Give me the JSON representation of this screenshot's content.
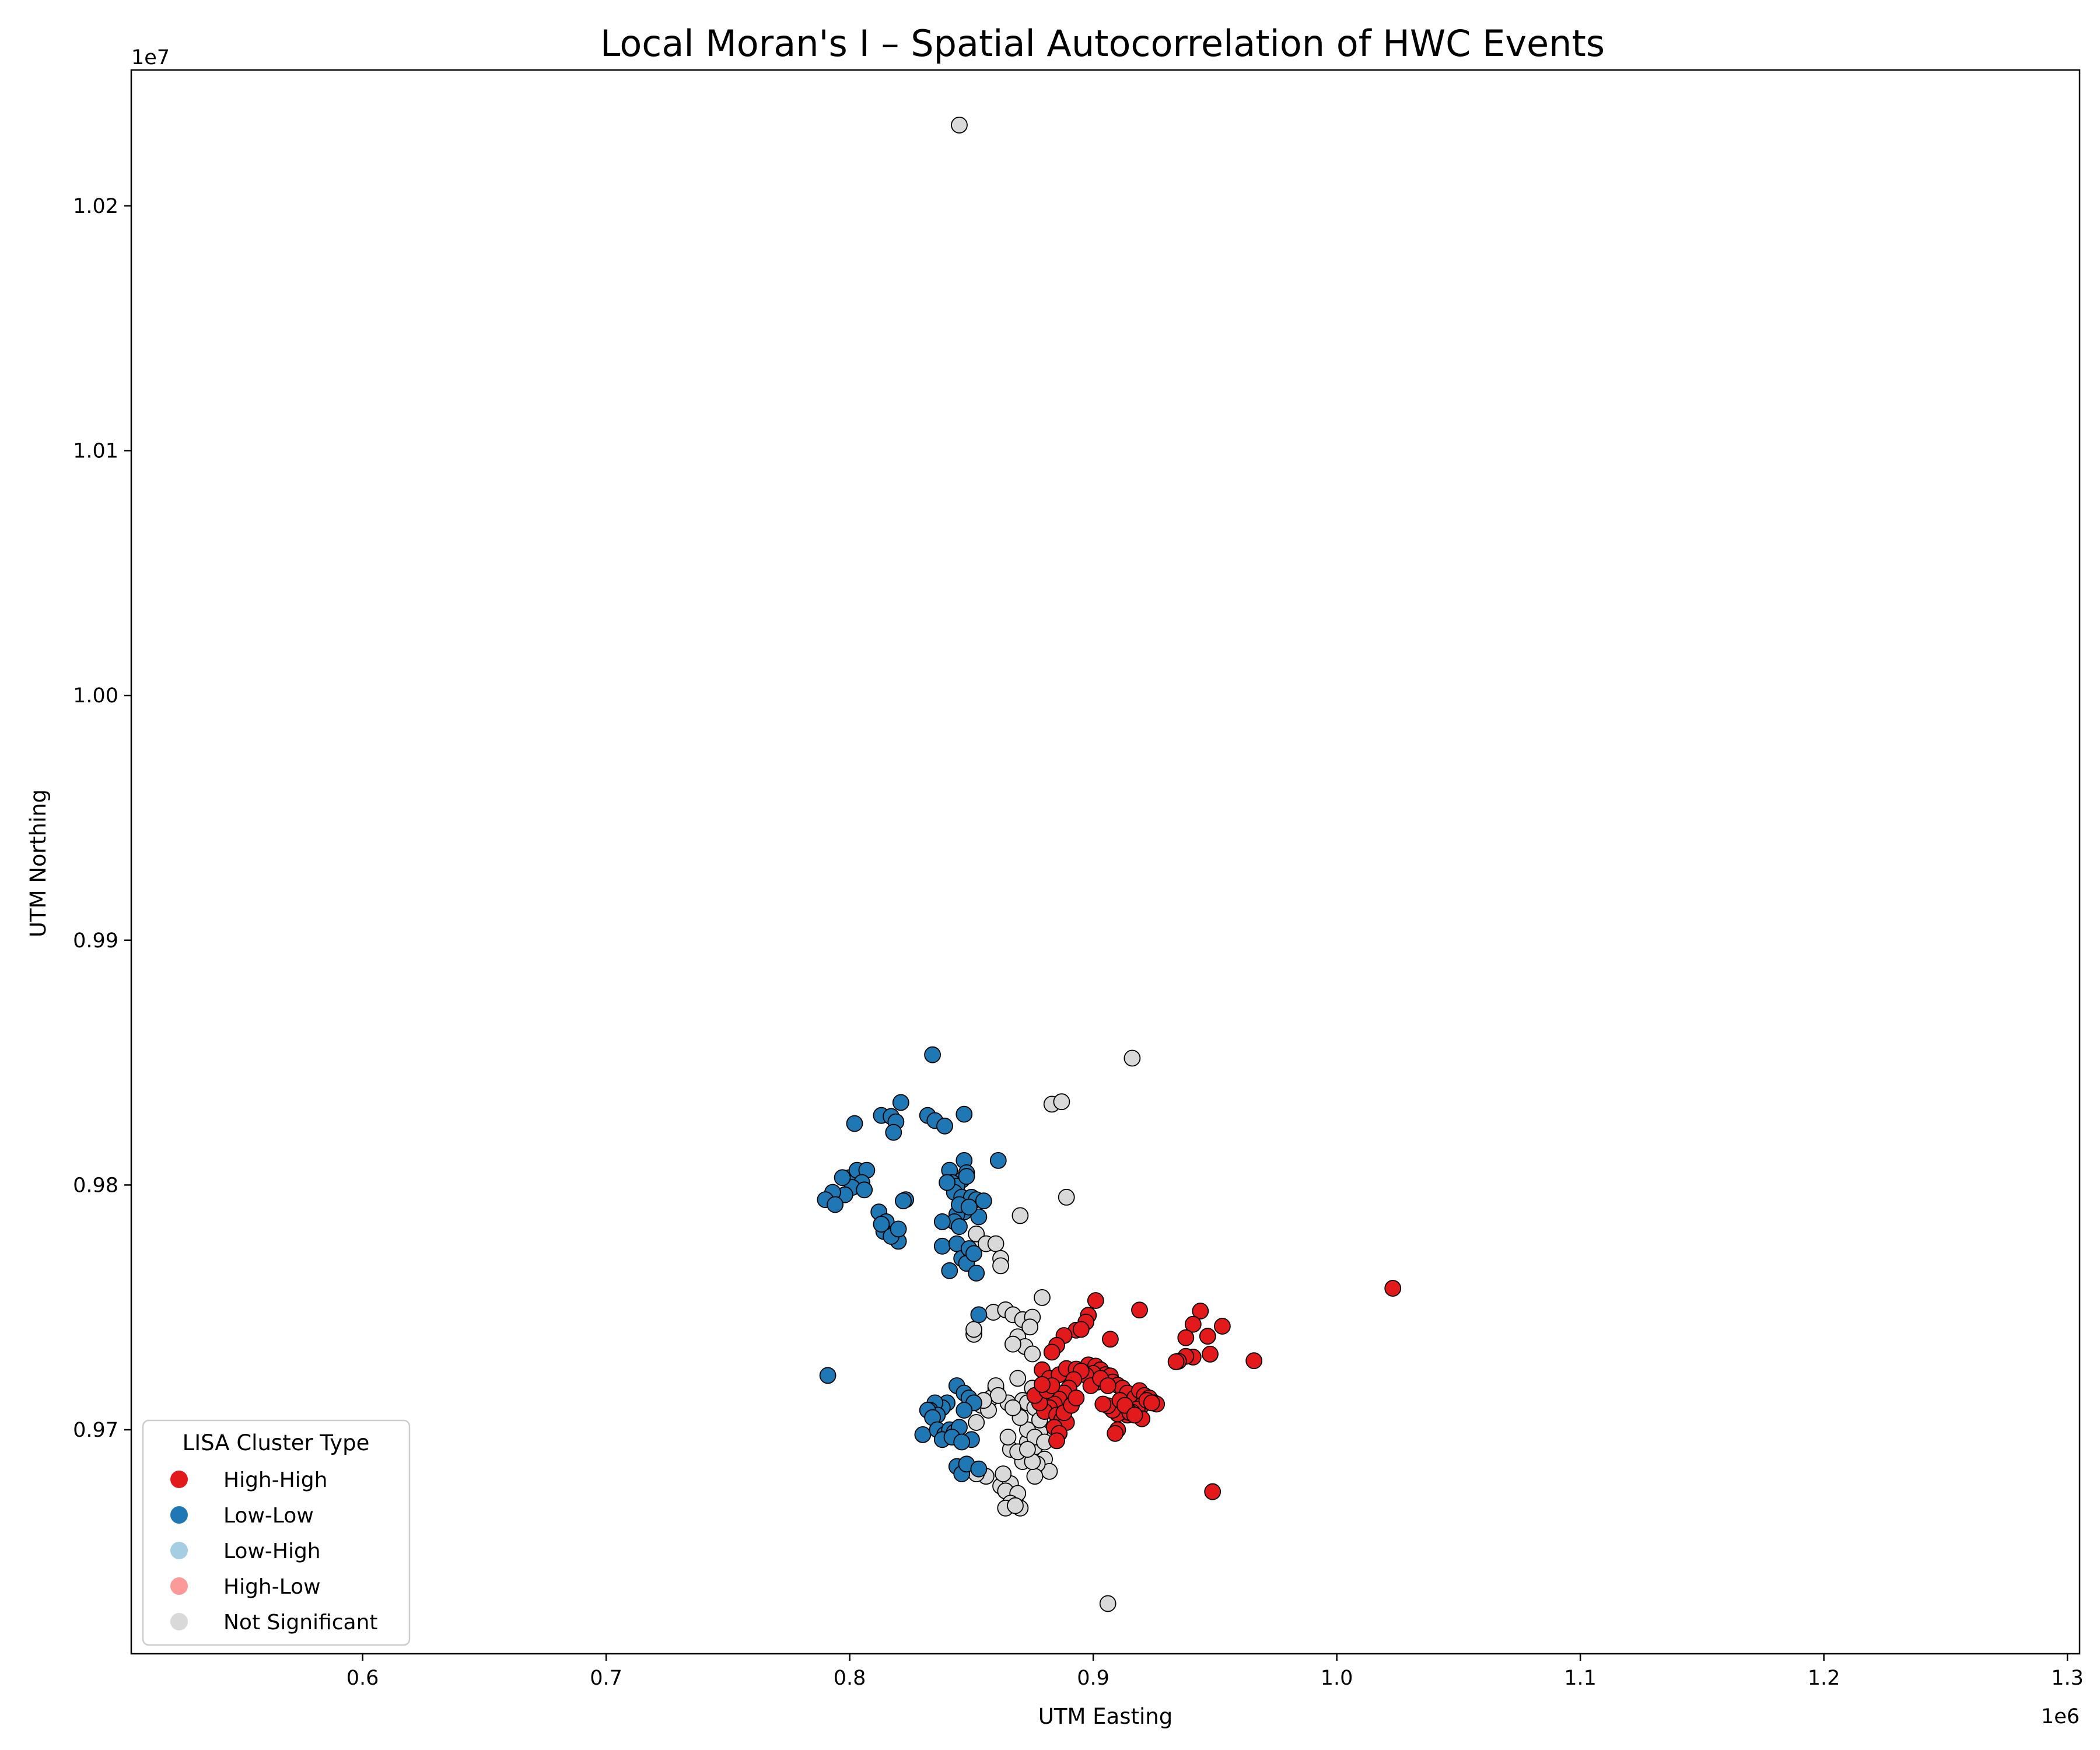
{
  "chart_data": {
    "type": "scatter",
    "title": "Local Moran's I – Spatial Autocorrelation of HWC Events",
    "xlabel": "UTM Easting",
    "ylabel": "UTM Northing",
    "x_offset_label": "1e6",
    "y_offset_label": "1e7",
    "xlim": [
      0.505,
      1.305
    ],
    "ylim": [
      0.96085,
      1.02555
    ],
    "x_ticks": [
      0.6,
      0.7,
      0.8,
      0.9,
      1.0,
      1.1,
      1.2,
      1.3
    ],
    "x_tick_labels": [
      "0.6",
      "0.7",
      "0.8",
      "0.9",
      "1.0",
      "1.1",
      "1.2",
      "1.3"
    ],
    "y_ticks": [
      0.97,
      0.98,
      0.99,
      1.0,
      1.01,
      1.02
    ],
    "y_tick_labels": [
      "0.97",
      "0.98",
      "0.99",
      "1.00",
      "1.01",
      "1.02"
    ],
    "grid": false,
    "legend": {
      "title": "LISA Cluster Type",
      "placement": "lower-left",
      "entries": [
        {
          "label": "High-High",
          "color": "#e31a1c"
        },
        {
          "label": "Low-Low",
          "color": "#1f78b4"
        },
        {
          "label": "Low-High",
          "color": "#a6cee3"
        },
        {
          "label": "High-Low",
          "color": "#fb9a99"
        },
        {
          "label": "Not Significant",
          "color": "#d9d9d9"
        }
      ]
    },
    "series": [
      {
        "name": "High-High",
        "color": "#e31a1c",
        "points": [
          [
            1.023,
            0.97578
          ],
          [
            0.966,
            0.97282
          ],
          [
            0.948,
            0.97309
          ],
          [
            0.947,
            0.97382
          ],
          [
            0.953,
            0.97423
          ],
          [
            0.944,
            0.97485
          ],
          [
            0.941,
            0.97431
          ],
          [
            0.938,
            0.97376
          ],
          [
            0.941,
            0.97297
          ],
          [
            0.938,
            0.973
          ],
          [
            0.935,
            0.9728
          ],
          [
            0.934,
            0.97278
          ],
          [
            0.949,
            0.96747
          ],
          [
            0.919,
            0.97489
          ],
          [
            0.907,
            0.9737
          ],
          [
            0.901,
            0.97528
          ],
          [
            0.898,
            0.97468
          ],
          [
            0.897,
            0.9744
          ],
          [
            0.893,
            0.97407
          ],
          [
            0.895,
            0.9741
          ],
          [
            0.888,
            0.97385
          ],
          [
            0.885,
            0.97345
          ],
          [
            0.883,
            0.97317
          ],
          [
            0.879,
            0.97245
          ],
          [
            0.882,
            0.9721
          ],
          [
            0.886,
            0.97225
          ],
          [
            0.889,
            0.9725
          ],
          [
            0.893,
            0.97248
          ],
          [
            0.896,
            0.9723
          ],
          [
            0.898,
            0.97265
          ],
          [
            0.901,
            0.9726
          ],
          [
            0.903,
            0.97245
          ],
          [
            0.905,
            0.97225
          ],
          [
            0.907,
            0.9722
          ],
          [
            0.908,
            0.97195
          ],
          [
            0.91,
            0.97182
          ],
          [
            0.912,
            0.9717
          ],
          [
            0.914,
            0.9715
          ],
          [
            0.917,
            0.9713
          ],
          [
            0.919,
            0.9716
          ],
          [
            0.921,
            0.9714
          ],
          [
            0.923,
            0.9713
          ],
          [
            0.925,
            0.9711
          ],
          [
            0.926,
            0.97105
          ],
          [
            0.92,
            0.971
          ],
          [
            0.918,
            0.97085
          ],
          [
            0.916,
            0.97072
          ],
          [
            0.914,
            0.9706
          ],
          [
            0.912,
            0.97075
          ],
          [
            0.91,
            0.97065
          ],
          [
            0.908,
            0.9708
          ],
          [
            0.906,
            0.97098
          ],
          [
            0.904,
            0.97105
          ],
          [
            0.91,
            0.97
          ],
          [
            0.909,
            0.96985
          ],
          [
            0.92,
            0.97045
          ],
          [
            0.915,
            0.9707
          ],
          [
            0.902,
            0.97195
          ],
          [
            0.9,
            0.9723
          ],
          [
            0.897,
            0.97223
          ],
          [
            0.895,
            0.9724
          ],
          [
            0.892,
            0.97205
          ],
          [
            0.89,
            0.9717
          ],
          [
            0.888,
            0.9715
          ],
          [
            0.886,
            0.97125
          ],
          [
            0.884,
            0.97105
          ],
          [
            0.882,
            0.9709
          ],
          [
            0.88,
            0.97075
          ],
          [
            0.878,
            0.9711
          ],
          [
            0.876,
            0.9714
          ],
          [
            0.881,
            0.9716
          ],
          [
            0.883,
            0.9718
          ],
          [
            0.885,
            0.9706
          ],
          [
            0.887,
            0.9704
          ],
          [
            0.889,
            0.9703
          ],
          [
            0.884,
            0.9701
          ],
          [
            0.886,
            0.96985
          ],
          [
            0.885,
            0.96955
          ],
          [
            0.888,
            0.9707
          ],
          [
            0.891,
            0.971
          ],
          [
            0.893,
            0.9713
          ],
          [
            0.899,
            0.9718
          ],
          [
            0.903,
            0.9721
          ],
          [
            0.906,
            0.9718
          ],
          [
            0.911,
            0.9712
          ],
          [
            0.913,
            0.971
          ],
          [
            0.922,
            0.9712
          ],
          [
            0.924,
            0.9711
          ],
          [
            0.917,
            0.9706
          ],
          [
            0.879,
            0.97185
          ]
        ]
      },
      {
        "name": "Low-Low",
        "color": "#1f78b4",
        "points": [
          [
            0.834,
            0.98532
          ],
          [
            0.791,
            0.97222
          ],
          [
            0.821,
            0.98337
          ],
          [
            0.813,
            0.98284
          ],
          [
            0.817,
            0.9828
          ],
          [
            0.819,
            0.98258
          ],
          [
            0.818,
            0.98215
          ],
          [
            0.802,
            0.98251
          ],
          [
            0.832,
            0.98284
          ],
          [
            0.835,
            0.98263
          ],
          [
            0.839,
            0.98241
          ],
          [
            0.847,
            0.98289
          ],
          [
            0.861,
            0.981
          ],
          [
            0.847,
            0.981
          ],
          [
            0.848,
            0.9805
          ],
          [
            0.841,
            0.9806
          ],
          [
            0.846,
            0.9802
          ],
          [
            0.842,
            0.9801
          ],
          [
            0.844,
            0.97995
          ],
          [
            0.843,
            0.9797
          ],
          [
            0.846,
            0.9795
          ],
          [
            0.85,
            0.9795
          ],
          [
            0.852,
            0.9794
          ],
          [
            0.855,
            0.97935
          ],
          [
            0.853,
            0.9787
          ],
          [
            0.847,
            0.9789
          ],
          [
            0.844,
            0.9788
          ],
          [
            0.843,
            0.9785
          ],
          [
            0.838,
            0.9785
          ],
          [
            0.845,
            0.9783
          ],
          [
            0.838,
            0.9775
          ],
          [
            0.844,
            0.9776
          ],
          [
            0.846,
            0.977
          ],
          [
            0.848,
            0.9768
          ],
          [
            0.852,
            0.9764
          ],
          [
            0.841,
            0.9765
          ],
          [
            0.8,
            0.9803
          ],
          [
            0.803,
            0.9806
          ],
          [
            0.807,
            0.9806
          ],
          [
            0.805,
            0.9801
          ],
          [
            0.801,
            0.9799
          ],
          [
            0.798,
            0.9796
          ],
          [
            0.793,
            0.9797
          ],
          [
            0.79,
            0.9794
          ],
          [
            0.794,
            0.9792
          ],
          [
            0.797,
            0.9803
          ],
          [
            0.806,
            0.9798
          ],
          [
            0.812,
            0.9789
          ],
          [
            0.815,
            0.9785
          ],
          [
            0.814,
            0.9781
          ],
          [
            0.818,
            0.978
          ],
          [
            0.82,
            0.9777
          ],
          [
            0.813,
            0.9784
          ],
          [
            0.817,
            0.9779
          ],
          [
            0.82,
            0.9782
          ],
          [
            0.823,
            0.9794
          ],
          [
            0.822,
            0.97935
          ],
          [
            0.849,
            0.9774
          ],
          [
            0.851,
            0.9772
          ],
          [
            0.853,
            0.9747
          ],
          [
            0.844,
            0.9718
          ],
          [
            0.847,
            0.9715
          ],
          [
            0.849,
            0.9713
          ],
          [
            0.851,
            0.9711
          ],
          [
            0.84,
            0.9711
          ],
          [
            0.838,
            0.9709
          ],
          [
            0.835,
            0.9711
          ],
          [
            0.833,
            0.9708
          ],
          [
            0.836,
            0.9706
          ],
          [
            0.832,
            0.9708
          ],
          [
            0.834,
            0.9705
          ],
          [
            0.83,
            0.9698
          ],
          [
            0.836,
            0.97
          ],
          [
            0.839,
            0.9698
          ],
          [
            0.841,
            0.97
          ],
          [
            0.843,
            0.9699
          ],
          [
            0.845,
            0.9701
          ],
          [
            0.838,
            0.9696
          ],
          [
            0.842,
            0.9697
          ],
          [
            0.847,
            0.9708
          ],
          [
            0.844,
            0.9685
          ],
          [
            0.846,
            0.9682
          ],
          [
            0.848,
            0.9686
          ],
          [
            0.853,
            0.9684
          ],
          [
            0.85,
            0.9696
          ],
          [
            0.846,
            0.9695
          ],
          [
            0.848,
            0.98035
          ],
          [
            0.84,
            0.9801
          ],
          [
            0.845,
            0.9792
          ],
          [
            0.849,
            0.9791
          ]
        ]
      },
      {
        "name": "Not Significant",
        "color": "#d9d9d9",
        "points": [
          [
            0.845,
            1.0233
          ],
          [
            0.916,
            0.98518
          ],
          [
            0.883,
            0.9833
          ],
          [
            0.887,
            0.9834
          ],
          [
            0.889,
            0.9795
          ],
          [
            0.87,
            0.97875
          ],
          [
            0.852,
            0.978
          ],
          [
            0.856,
            0.9776
          ],
          [
            0.86,
            0.9776
          ],
          [
            0.862,
            0.977
          ],
          [
            0.862,
            0.9767
          ],
          [
            0.879,
            0.9754
          ],
          [
            0.859,
            0.9748
          ],
          [
            0.864,
            0.9749
          ],
          [
            0.867,
            0.9747
          ],
          [
            0.871,
            0.9745
          ],
          [
            0.875,
            0.9746
          ],
          [
            0.874,
            0.9742
          ],
          [
            0.869,
            0.9738
          ],
          [
            0.872,
            0.9734
          ],
          [
            0.875,
            0.9731
          ],
          [
            0.867,
            0.9735
          ],
          [
            0.851,
            0.9739
          ],
          [
            0.851,
            0.9741
          ],
          [
            0.869,
            0.9721
          ],
          [
            0.875,
            0.9717
          ],
          [
            0.871,
            0.9712
          ],
          [
            0.873,
            0.9711
          ],
          [
            0.876,
            0.9709
          ],
          [
            0.865,
            0.9711
          ],
          [
            0.86,
            0.9717
          ],
          [
            0.858,
            0.9713
          ],
          [
            0.86,
            0.9718
          ],
          [
            0.854,
            0.971
          ],
          [
            0.857,
            0.9708
          ],
          [
            0.852,
            0.9703
          ],
          [
            0.856,
            0.9681
          ],
          [
            0.852,
            0.9682
          ],
          [
            0.862,
            0.9677
          ],
          [
            0.866,
            0.9678
          ],
          [
            0.864,
            0.9675
          ],
          [
            0.869,
            0.9674
          ],
          [
            0.866,
            0.967
          ],
          [
            0.87,
            0.9668
          ],
          [
            0.864,
            0.9668
          ],
          [
            0.868,
            0.9669
          ],
          [
            0.863,
            0.9682
          ],
          [
            0.871,
            0.9687
          ],
          [
            0.873,
            0.9695
          ],
          [
            0.876,
            0.9693
          ],
          [
            0.878,
            0.9699
          ],
          [
            0.873,
            0.97
          ],
          [
            0.876,
            0.9697
          ],
          [
            0.88,
            0.9695
          ],
          [
            0.88,
            0.9688
          ],
          [
            0.882,
            0.9683
          ],
          [
            0.877,
            0.9686
          ],
          [
            0.876,
            0.9681
          ],
          [
            0.875,
            0.9687
          ],
          [
            0.866,
            0.9692
          ],
          [
            0.865,
            0.9697
          ],
          [
            0.869,
            0.9691
          ],
          [
            0.873,
            0.9692
          ],
          [
            0.87,
            0.9705
          ],
          [
            0.867,
            0.9709
          ],
          [
            0.878,
            0.9704
          ],
          [
            0.906,
            0.9629
          ],
          [
            0.861,
            0.9714
          ],
          [
            0.855,
            0.9712
          ]
        ]
      },
      {
        "name": "Low-High",
        "color": "#a6cee3",
        "points": []
      },
      {
        "name": "High-Low",
        "color": "#fb9a99",
        "points": []
      }
    ]
  }
}
